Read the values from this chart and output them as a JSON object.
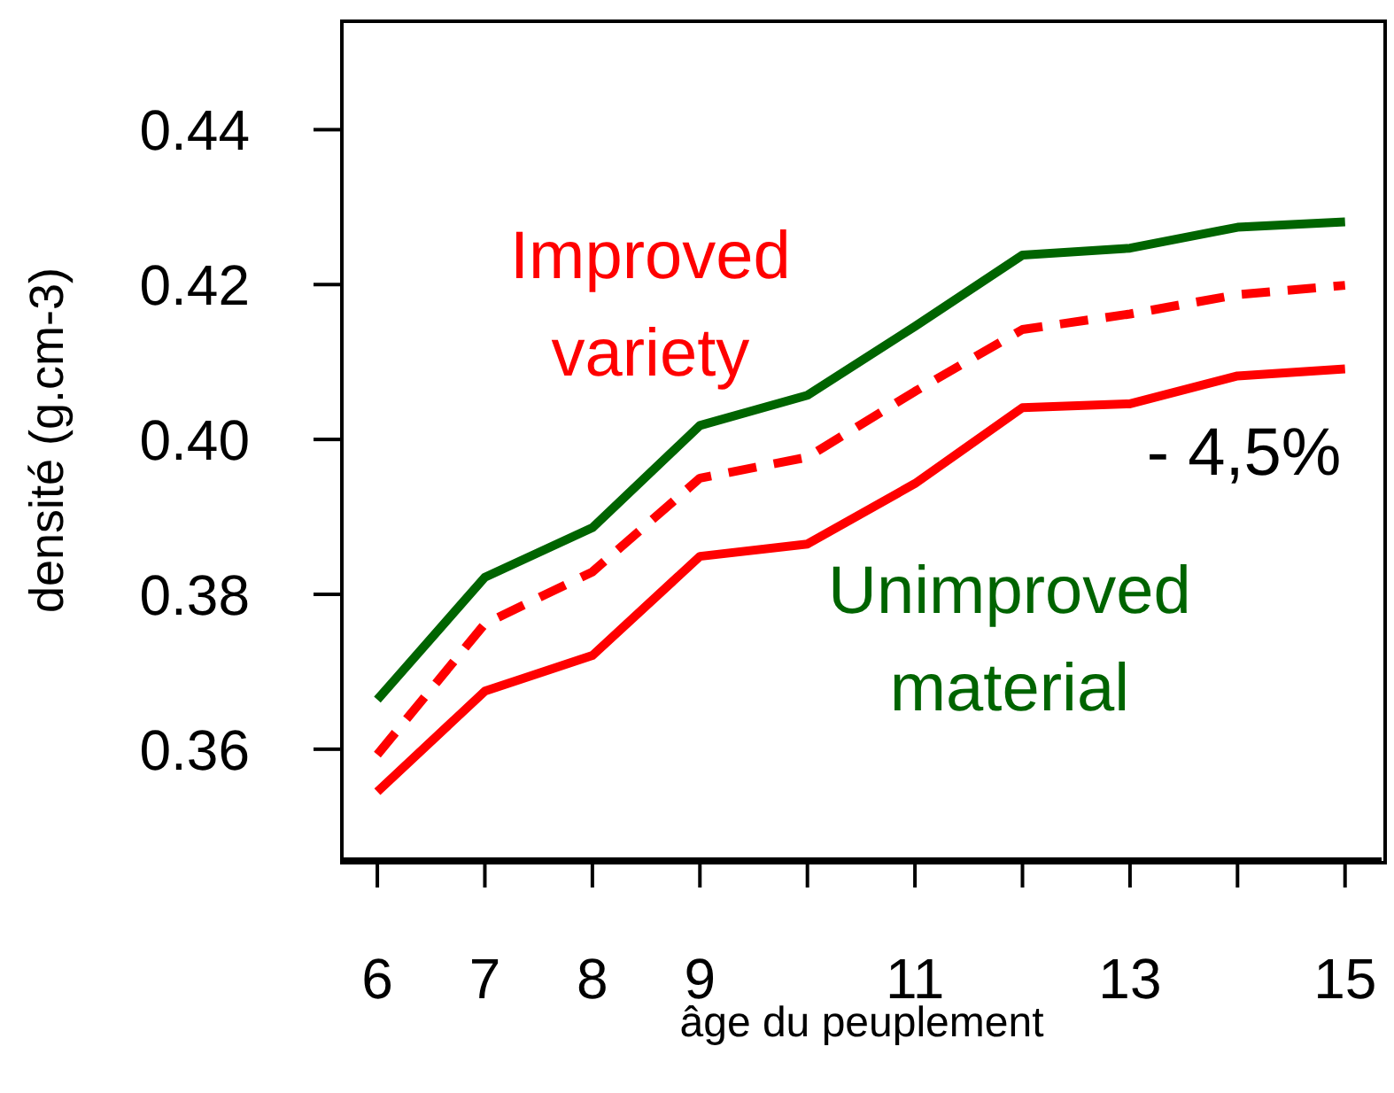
{
  "chart_data": {
    "type": "line",
    "xlabel": "âge du peuplement",
    "ylabel": "densité (g.cm-3)",
    "x": [
      6,
      7,
      8,
      9,
      10,
      11,
      12,
      13,
      14,
      15
    ],
    "series": [
      {
        "name": "Unimproved material",
        "color": "#006400",
        "line_style": "solid",
        "values": [
          0.3664,
          0.3822,
          0.3886,
          0.4018,
          0.4057,
          0.4146,
          0.4238,
          0.4247,
          0.4274,
          0.4281
        ]
      },
      {
        "color": "#ff0000",
        "line_style": "dashed",
        "values": [
          0.3593,
          0.3762,
          0.3829,
          0.395,
          0.3977,
          0.4062,
          0.4142,
          0.4162,
          0.4187,
          0.4199
        ]
      },
      {
        "name": "Improved variety",
        "color": "#ff0000",
        "line_style": "solid",
        "values": [
          0.3545,
          0.3675,
          0.3721,
          0.3849,
          0.3865,
          0.3943,
          0.4041,
          0.4046,
          0.4082,
          0.4091
        ]
      }
    ],
    "xlim": [
      5.67,
      15.34
    ],
    "ylim": [
      0.3458,
      0.454
    ],
    "xticks": [
      6,
      7,
      8,
      9,
      {
        "value": 10,
        "label": null
      },
      11,
      {
        "value": 12,
        "label": null
      },
      13,
      {
        "value": 14,
        "label": null
      },
      15
    ],
    "yticks": [
      0.36,
      0.38,
      {
        "value": 0.4,
        "label": "0.40"
      },
      0.42,
      0.44
    ],
    "annotations": [
      "- 4,5%"
    ],
    "grid": false,
    "legend": false,
    "marker": "none"
  }
}
